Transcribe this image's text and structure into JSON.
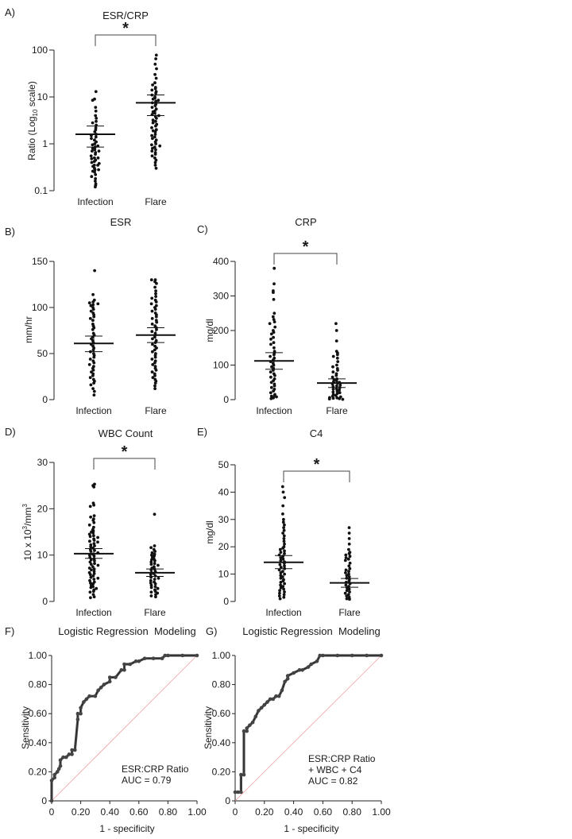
{
  "figure": {
    "panels": [
      {
        "letter": "A)",
        "title": "ESR/CRP"
      },
      {
        "letter": "B)",
        "title": "ESR"
      },
      {
        "letter": "C)",
        "title": "CRP"
      },
      {
        "letter": "D)",
        "title": "WBC Count"
      },
      {
        "letter": "E)",
        "title": "C4"
      },
      {
        "letter": "F)",
        "title": "Logistic Regression  Modeling"
      },
      {
        "letter": "G)",
        "title": "Logistic Regression  Modeling"
      }
    ]
  },
  "chart_data": [
    {
      "type": "scatter",
      "panel": "A",
      "title": "ESR/CRP",
      "ylabel": "Ratio (Log10 scale)",
      "ylabel_main": "Ratio (Log",
      "ylabel_sub": "10",
      "ylabel_tail": " scale)",
      "yscale": "log",
      "ylim": [
        0.1,
        100
      ],
      "yticks": [
        0.1,
        1,
        10,
        100
      ],
      "ytick_labels": [
        "0.1",
        "1",
        "10",
        "100"
      ],
      "categories": [
        "Infection",
        "Flare"
      ],
      "significance": "*",
      "groups": [
        {
          "name": "Infection",
          "mean": 1.6,
          "err_low": 0.85,
          "err_high": 2.4,
          "values": [
            13,
            9,
            8.5,
            6,
            5,
            4,
            3.5,
            3,
            2.8,
            2.5,
            2.2,
            2,
            1.8,
            1.6,
            1.5,
            1.4,
            1.3,
            1.2,
            1.1,
            1,
            0.95,
            0.9,
            0.85,
            0.8,
            0.75,
            0.7,
            0.65,
            0.6,
            0.55,
            0.5,
            0.48,
            0.45,
            0.42,
            0.4,
            0.38,
            0.35,
            0.33,
            0.3,
            0.28,
            0.26,
            0.25,
            0.22,
            0.2,
            0.18,
            0.16,
            0.14,
            0.13,
            0.12,
            0.5,
            0.7,
            0.35,
            0.28
          ]
        },
        {
          "name": "Flare",
          "mean": 7.5,
          "err_low": 4,
          "err_high": 11,
          "values": [
            78,
            65,
            50,
            40,
            30,
            25,
            20,
            18,
            16,
            15,
            14,
            13,
            12,
            11,
            10,
            9.5,
            9,
            8.5,
            8,
            7.5,
            7,
            6.5,
            6,
            5.5,
            5,
            4.8,
            4.5,
            4.2,
            4,
            3.8,
            3.5,
            3.2,
            3,
            2.8,
            2.6,
            2.4,
            2.2,
            2,
            1.9,
            1.8,
            1.6,
            1.5,
            1.4,
            1.3,
            1.2,
            1.1,
            1,
            0.95,
            0.9,
            0.85,
            0.8,
            0.75,
            0.7,
            0.65,
            0.6,
            0.55,
            0.5,
            0.45,
            0.4,
            0.35,
            0.3
          ]
        }
      ]
    },
    {
      "type": "scatter",
      "panel": "B",
      "title": "ESR",
      "ylabel": "mm/hr",
      "ylim": [
        0,
        150
      ],
      "yticks": [
        0,
        50,
        100,
        150
      ],
      "ytick_labels": [
        "0",
        "50",
        "100",
        "150"
      ],
      "categories": [
        "Infection",
        "Flare"
      ],
      "groups": [
        {
          "name": "Infection",
          "mean": 61,
          "err_low": 52,
          "err_high": 69,
          "values": [
            140,
            114,
            108,
            106,
            105,
            104,
            103,
            102,
            100,
            98,
            96,
            94,
            92,
            90,
            88,
            86,
            82,
            80,
            78,
            76,
            72,
            70,
            68,
            66,
            64,
            62,
            60,
            58,
            56,
            54,
            52,
            50,
            48,
            46,
            44,
            42,
            40,
            38,
            36,
            34,
            32,
            30,
            28,
            26,
            24,
            22,
            20,
            18,
            16,
            12,
            9,
            5
          ]
        },
        {
          "name": "Flare",
          "mean": 70,
          "err_low": 62,
          "err_high": 78,
          "values": [
            130,
            130,
            128,
            126,
            122,
            118,
            115,
            112,
            110,
            108,
            106,
            104,
            102,
            100,
            98,
            96,
            94,
            92,
            90,
            88,
            86,
            84,
            82,
            80,
            78,
            76,
            74,
            72,
            70,
            68,
            66,
            64,
            62,
            60,
            58,
            56,
            54,
            52,
            50,
            48,
            46,
            44,
            42,
            40,
            38,
            36,
            34,
            32,
            30,
            28,
            26,
            24,
            22,
            20,
            18,
            15,
            12
          ]
        }
      ]
    },
    {
      "type": "scatter",
      "panel": "C",
      "title": "CRP",
      "ylabel": "mg/dl",
      "ylim": [
        0,
        400
      ],
      "yticks": [
        0,
        100,
        200,
        300,
        400
      ],
      "ytick_labels": [
        "0",
        "100",
        "200",
        "300",
        "400"
      ],
      "categories": [
        "Infection",
        "Flare"
      ],
      "significance": "*",
      "groups": [
        {
          "name": "Infection",
          "mean": 112,
          "err_low": 88,
          "err_high": 136,
          "values": [
            380,
            335,
            315,
            310,
            290,
            250,
            240,
            232,
            225,
            220,
            210,
            200,
            195,
            190,
            180,
            175,
            165,
            160,
            150,
            140,
            135,
            130,
            125,
            120,
            115,
            110,
            105,
            100,
            95,
            90,
            85,
            80,
            75,
            70,
            65,
            60,
            55,
            50,
            45,
            40,
            35,
            30,
            25,
            20,
            15,
            12,
            10,
            8,
            5,
            3
          ]
        },
        {
          "name": "Flare",
          "mean": 48,
          "err_low": 35,
          "err_high": 60,
          "values": [
            220,
            200,
            170,
            140,
            135,
            130,
            125,
            120,
            110,
            100,
            95,
            90,
            85,
            80,
            75,
            70,
            65,
            60,
            58,
            55,
            52,
            50,
            48,
            45,
            42,
            40,
            38,
            35,
            32,
            30,
            28,
            25,
            22,
            20,
            18,
            15,
            12,
            10,
            8,
            6,
            5,
            4,
            3,
            2,
            1
          ]
        }
      ]
    },
    {
      "type": "scatter",
      "panel": "D",
      "title": "WBC Count",
      "ylabel": "10 x 10³/mm³",
      "ylabel_main": "10 x 10",
      "ylabel_sup1": "3",
      "ylabel_mid": "/mm",
      "ylabel_sup2": "3",
      "ylim": [
        0,
        30
      ],
      "yticks": [
        0,
        10,
        20,
        30
      ],
      "ytick_labels": [
        "0",
        "10",
        "20",
        "30"
      ],
      "categories": [
        "Infection",
        "Flare"
      ],
      "significance": "*",
      "groups": [
        {
          "name": "Infection",
          "mean": 10.3,
          "err_low": 9.3,
          "err_high": 11.4,
          "values": [
            25.3,
            25,
            24.7,
            21.2,
            20.8,
            20.5,
            18.5,
            18.2,
            17.8,
            17.5,
            17,
            16.5,
            16,
            15.5,
            15.2,
            15,
            14.8,
            14.5,
            14.2,
            14,
            13.8,
            13.5,
            13.2,
            13,
            12.8,
            12.5,
            12.2,
            12,
            11.8,
            11.5,
            11.2,
            11,
            10.8,
            10.5,
            10.2,
            10,
            9.8,
            9.5,
            9.2,
            9,
            8.8,
            8.5,
            8.2,
            8,
            7.8,
            7.5,
            7.2,
            7,
            6.8,
            6.5,
            6.2,
            6,
            5.8,
            5.5,
            5.2,
            5,
            4.8,
            4.5,
            4.2,
            4,
            3.8,
            3.5,
            3.2,
            3,
            2.8,
            2.5,
            2.2,
            2,
            1.5,
            1,
            0.8
          ]
        },
        {
          "name": "Flare",
          "mean": 6.2,
          "err_low": 5.4,
          "err_high": 7,
          "values": [
            18.8,
            12,
            11.6,
            11.2,
            10.8,
            10.5,
            10.2,
            10,
            9.8,
            9.5,
            9.2,
            9,
            8.8,
            8.5,
            8.2,
            8,
            7.8,
            7.5,
            7.2,
            7,
            6.8,
            6.5,
            6.2,
            6,
            5.8,
            5.5,
            5.2,
            5,
            4.8,
            4.5,
            4.2,
            4,
            3.8,
            3.5,
            3.2,
            3,
            2.8,
            2.5,
            2.2,
            2,
            1.8,
            1.5,
            1.2,
            1
          ]
        }
      ]
    },
    {
      "type": "scatter",
      "panel": "E",
      "title": "C4",
      "ylabel": "mg/dl",
      "ylim": [
        0,
        50
      ],
      "yticks": [
        0,
        10,
        20,
        30,
        40,
        50
      ],
      "ytick_labels": [
        "0",
        "10",
        "20",
        "30",
        "40",
        "50"
      ],
      "categories": [
        "Infection",
        "Flare"
      ],
      "significance": "*",
      "groups": [
        {
          "name": "Infection",
          "mean": 14.3,
          "err_low": 12,
          "err_high": 16.8,
          "values": [
            42,
            40,
            38,
            35,
            32,
            30,
            29,
            28,
            27,
            26,
            25,
            24,
            23,
            22,
            21,
            20,
            19.5,
            19,
            18.5,
            18,
            17.5,
            17,
            16.5,
            16,
            15.5,
            15,
            14.5,
            14,
            13.5,
            13,
            12.5,
            12,
            11.5,
            11,
            10.5,
            10,
            9.5,
            9,
            8.5,
            8,
            7.5,
            7,
            6.5,
            6,
            5.5,
            5,
            4.5,
            4,
            3.5,
            3,
            2.5,
            2,
            1.5,
            1
          ]
        },
        {
          "name": "Flare",
          "mean": 6.8,
          "err_low": 5.2,
          "err_high": 8.4,
          "values": [
            27,
            25,
            23,
            21,
            19,
            18,
            17.5,
            17,
            16.5,
            16,
            15.5,
            15,
            14,
            13,
            12,
            11.5,
            11,
            10.5,
            10,
            9.5,
            9,
            8.5,
            8,
            7.5,
            7,
            6.5,
            6,
            5.5,
            5,
            4.5,
            4,
            3.5,
            3,
            2.5,
            2,
            1.5,
            1,
            0.8
          ]
        }
      ]
    },
    {
      "type": "line",
      "panel": "F",
      "title": "Logistic Regression  Modeling",
      "xlabel": "1 - specificity",
      "ylabel": "Sensitivity",
      "xlim": [
        0,
        1
      ],
      "ylim": [
        0,
        1
      ],
      "xtick_labels": [
        "0",
        "0.20",
        "0.40",
        "0.60",
        "0.80",
        "1.00"
      ],
      "ytick_labels": [
        "0",
        "0.20",
        "0.40",
        "0.60",
        "0.80",
        "1.00"
      ],
      "legend": [
        "ESR:CRP Ratio",
        "AUC = 0.79"
      ],
      "series": [
        {
          "x": [
            0,
            0,
            0.02,
            0.02,
            0.04,
            0.05,
            0.06,
            0.06,
            0.08,
            0.1,
            0.12,
            0.14,
            0.14,
            0.16,
            0.18,
            0.18,
            0.2,
            0.2,
            0.22,
            0.24,
            0.26,
            0.3,
            0.32,
            0.34,
            0.36,
            0.4,
            0.4,
            0.44,
            0.48,
            0.5,
            0.5,
            0.54,
            0.58,
            0.6,
            0.64,
            0.7,
            0.76,
            0.78,
            0.8,
            0.9,
            1
          ],
          "y": [
            0,
            0.14,
            0.16,
            0.18,
            0.2,
            0.22,
            0.24,
            0.28,
            0.3,
            0.3,
            0.32,
            0.32,
            0.35,
            0.35,
            0.56,
            0.6,
            0.6,
            0.64,
            0.68,
            0.7,
            0.72,
            0.72,
            0.76,
            0.78,
            0.8,
            0.82,
            0.85,
            0.85,
            0.9,
            0.9,
            0.94,
            0.94,
            0.96,
            0.96,
            0.98,
            0.98,
            0.98,
            1,
            1,
            1,
            1
          ]
        }
      ]
    },
    {
      "type": "line",
      "panel": "G",
      "title": "Logistic Regression  Modeling",
      "xlabel": "1 - specificity",
      "ylabel": "Sensitivity",
      "xlim": [
        0,
        1
      ],
      "ylim": [
        0,
        1
      ],
      "xtick_labels": [
        "0",
        "0.20",
        "0.40",
        "0.60",
        "0.80",
        "1.00"
      ],
      "ytick_labels": [
        "0",
        "0.20",
        "0.40",
        "0.60",
        "0.80",
        "1.00"
      ],
      "legend": [
        "ESR:CRP Ratio",
        "+ WBC + C4",
        "AUC = 0.82"
      ],
      "series": [
        {
          "x": [
            0,
            0.02,
            0.04,
            0.04,
            0.06,
            0.06,
            0.08,
            0.08,
            0.1,
            0.12,
            0.14,
            0.16,
            0.18,
            0.2,
            0.22,
            0.24,
            0.26,
            0.28,
            0.3,
            0.32,
            0.34,
            0.36,
            0.36,
            0.4,
            0.44,
            0.46,
            0.5,
            0.52,
            0.56,
            0.58,
            0.6,
            0.7,
            0.8,
            0.9,
            1
          ],
          "y": [
            0.06,
            0.06,
            0.06,
            0.18,
            0.18,
            0.48,
            0.48,
            0.5,
            0.52,
            0.54,
            0.58,
            0.62,
            0.64,
            0.66,
            0.68,
            0.7,
            0.7,
            0.72,
            0.72,
            0.76,
            0.82,
            0.84,
            0.86,
            0.88,
            0.9,
            0.9,
            0.92,
            0.94,
            0.96,
            1,
            1,
            1,
            1,
            1,
            1
          ]
        }
      ]
    }
  ]
}
